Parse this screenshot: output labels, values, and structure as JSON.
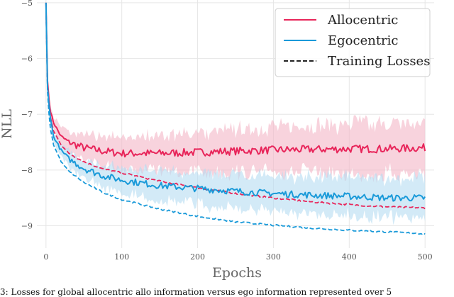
{
  "chart_data": {
    "type": "line",
    "xlabel": "Epochs",
    "ylabel": "NLL",
    "xlim": [
      -12,
      512
    ],
    "ylim": [
      -9.4,
      -4.95
    ],
    "grid": true,
    "legend_position": "top-right",
    "x_ticks": [
      0,
      100,
      200,
      300,
      400,
      500
    ],
    "x_tick_labels": [
      "0",
      "100",
      "200",
      "300",
      "400",
      "500"
    ],
    "y_ticks": [
      -5,
      -6,
      -7,
      -8,
      -9
    ],
    "y_tick_labels": [
      "−5",
      "−6",
      "−7",
      "−8",
      "−9"
    ],
    "legend": [
      {
        "label": "Allocentric",
        "style": "solid",
        "color": "#e8255a"
      },
      {
        "label": "Egocentric",
        "style": "solid",
        "color": "#1a9ad9"
      },
      {
        "label": "Training Losses",
        "style": "dashed",
        "color": "#222222"
      }
    ],
    "series": [
      {
        "name": "Allocentric",
        "kind": "validation",
        "color": "#e8255a",
        "shade": "#f4b6c6",
        "x": [
          0,
          2,
          5,
          10,
          20,
          30,
          50,
          75,
          100,
          150,
          200,
          250,
          300,
          350,
          400,
          450,
          500
        ],
        "values": [
          -5.0,
          -6.4,
          -6.9,
          -7.15,
          -7.4,
          -7.5,
          -7.6,
          -7.66,
          -7.7,
          -7.7,
          -7.68,
          -7.66,
          -7.64,
          -7.63,
          -7.62,
          -7.62,
          -7.6
        ],
        "band_halfwidth": [
          0.0,
          0.1,
          0.1,
          0.12,
          0.15,
          0.18,
          0.2,
          0.25,
          0.28,
          0.32,
          0.35,
          0.38,
          0.4,
          0.42,
          0.45,
          0.45,
          0.45
        ]
      },
      {
        "name": "Allocentric",
        "kind": "training",
        "color": "#e8255a",
        "x": [
          0,
          2,
          5,
          10,
          20,
          30,
          50,
          75,
          100,
          150,
          200,
          250,
          300,
          350,
          400,
          450,
          500
        ],
        "values": [
          -5.0,
          -6.5,
          -7.0,
          -7.3,
          -7.55,
          -7.7,
          -7.85,
          -7.98,
          -8.05,
          -8.2,
          -8.32,
          -8.42,
          -8.5,
          -8.57,
          -8.62,
          -8.66,
          -8.68
        ]
      },
      {
        "name": "Egocentric",
        "kind": "validation",
        "color": "#1a9ad9",
        "shade": "#b5dcf1",
        "x": [
          0,
          2,
          5,
          10,
          20,
          30,
          50,
          75,
          100,
          150,
          200,
          250,
          300,
          350,
          400,
          450,
          500
        ],
        "values": [
          -5.0,
          -6.5,
          -7.0,
          -7.4,
          -7.65,
          -7.8,
          -7.97,
          -8.1,
          -8.18,
          -8.28,
          -8.33,
          -8.38,
          -8.42,
          -8.45,
          -8.47,
          -8.5,
          -8.5
        ],
        "band_halfwidth": [
          0.0,
          0.08,
          0.08,
          0.1,
          0.12,
          0.14,
          0.16,
          0.2,
          0.22,
          0.26,
          0.28,
          0.3,
          0.32,
          0.33,
          0.34,
          0.35,
          0.35
        ]
      },
      {
        "name": "Egocentric",
        "kind": "training",
        "color": "#1a9ad9",
        "x": [
          0,
          2,
          5,
          10,
          20,
          30,
          50,
          75,
          100,
          150,
          200,
          250,
          300,
          350,
          400,
          450,
          500
        ],
        "values": [
          -5.0,
          -6.6,
          -7.2,
          -7.55,
          -7.85,
          -8.02,
          -8.22,
          -8.4,
          -8.53,
          -8.7,
          -8.83,
          -8.93,
          -8.99,
          -9.04,
          -9.08,
          -9.11,
          -9.14
        ]
      }
    ]
  },
  "caption_fragment": "3: Losses for global allocentric allo information versus ego information represented over 5"
}
